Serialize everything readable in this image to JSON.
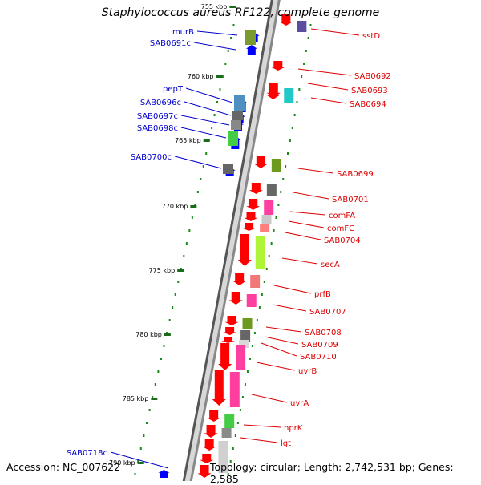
{
  "title": "Staphylococcus aureus RF122, complete genome",
  "footer": {
    "accession": "Accession: NC_007622",
    "topology": "Topology: circular; Length: 2,742,531 bp; Genes: 2,585"
  },
  "colors": {
    "forward_label": "#dd0000",
    "reverse_label": "#0000cc",
    "forward_arrow": "#ff0000",
    "reverse_arrow": "#0000ff",
    "backbone_fill": "#d8d8d8",
    "backbone_edge": "#555555",
    "tick": "#1a6b1a",
    "dots": "#1a8a1a"
  },
  "diagram": {
    "tick_labels": [
      "755 kbp",
      "760 kbp",
      "765 kbp",
      "770 kbp",
      "775 kbp",
      "780 kbp",
      "785 kbp",
      "790 kbp"
    ],
    "forward_genes": [
      {
        "label": "sstD",
        "cog_color": "#5b4e9e"
      },
      {
        "label": "SAB0692",
        "cog_color": ""
      },
      {
        "label": "SAB0693",
        "cog_color": ""
      },
      {
        "label": "SAB0694",
        "cog_color": "#20c8c8"
      },
      {
        "label": "SAB0699",
        "cog_color": "#6b9a1e"
      },
      {
        "label": "SAB0701",
        "cog_color": "#666666"
      },
      {
        "label": "comFA",
        "cog_color": "#ff3fa0"
      },
      {
        "label": "comFC",
        "cog_color": "#c8c8c8"
      },
      {
        "label": "SAB0704",
        "cog_color": "#ff7f7f"
      },
      {
        "label": "secA",
        "cog_color": "#aef53a"
      },
      {
        "label": "prfB",
        "cog_color": "#f07878"
      },
      {
        "label": "SAB0707",
        "cog_color": "#ff3fa0"
      },
      {
        "label": "SAB0708",
        "cog_color": "#6b9a1e"
      },
      {
        "label": "SAB0709",
        "cog_color": "#666666"
      },
      {
        "label": "SAB0710",
        "cog_color": "#d8d8d8"
      },
      {
        "label": "uvrB",
        "cog_color": "#ff3fa0"
      },
      {
        "label": "uvrA",
        "cog_color": "#ff3fa0"
      },
      {
        "label": "hprK",
        "cog_color": "#44cc44"
      },
      {
        "label": "lgt",
        "cog_color": "#8a8a8a"
      }
    ],
    "reverse_genes": [
      {
        "label": "murB",
        "cog_color": "#7a9a2e"
      },
      {
        "label": "SAB0691c",
        "cog_color": ""
      },
      {
        "label": "pepT",
        "cog_color": "#5090c0"
      },
      {
        "label": "SAB0696c",
        "cog_color": "#666666"
      },
      {
        "label": "SAB0697c",
        "cog_color": "#888888"
      },
      {
        "label": "SAB0698c",
        "cog_color": "#44cc44"
      },
      {
        "label": "SAB0700c",
        "cog_color": "#666666"
      },
      {
        "label": "SAB0718c",
        "cog_color": ""
      }
    ]
  }
}
